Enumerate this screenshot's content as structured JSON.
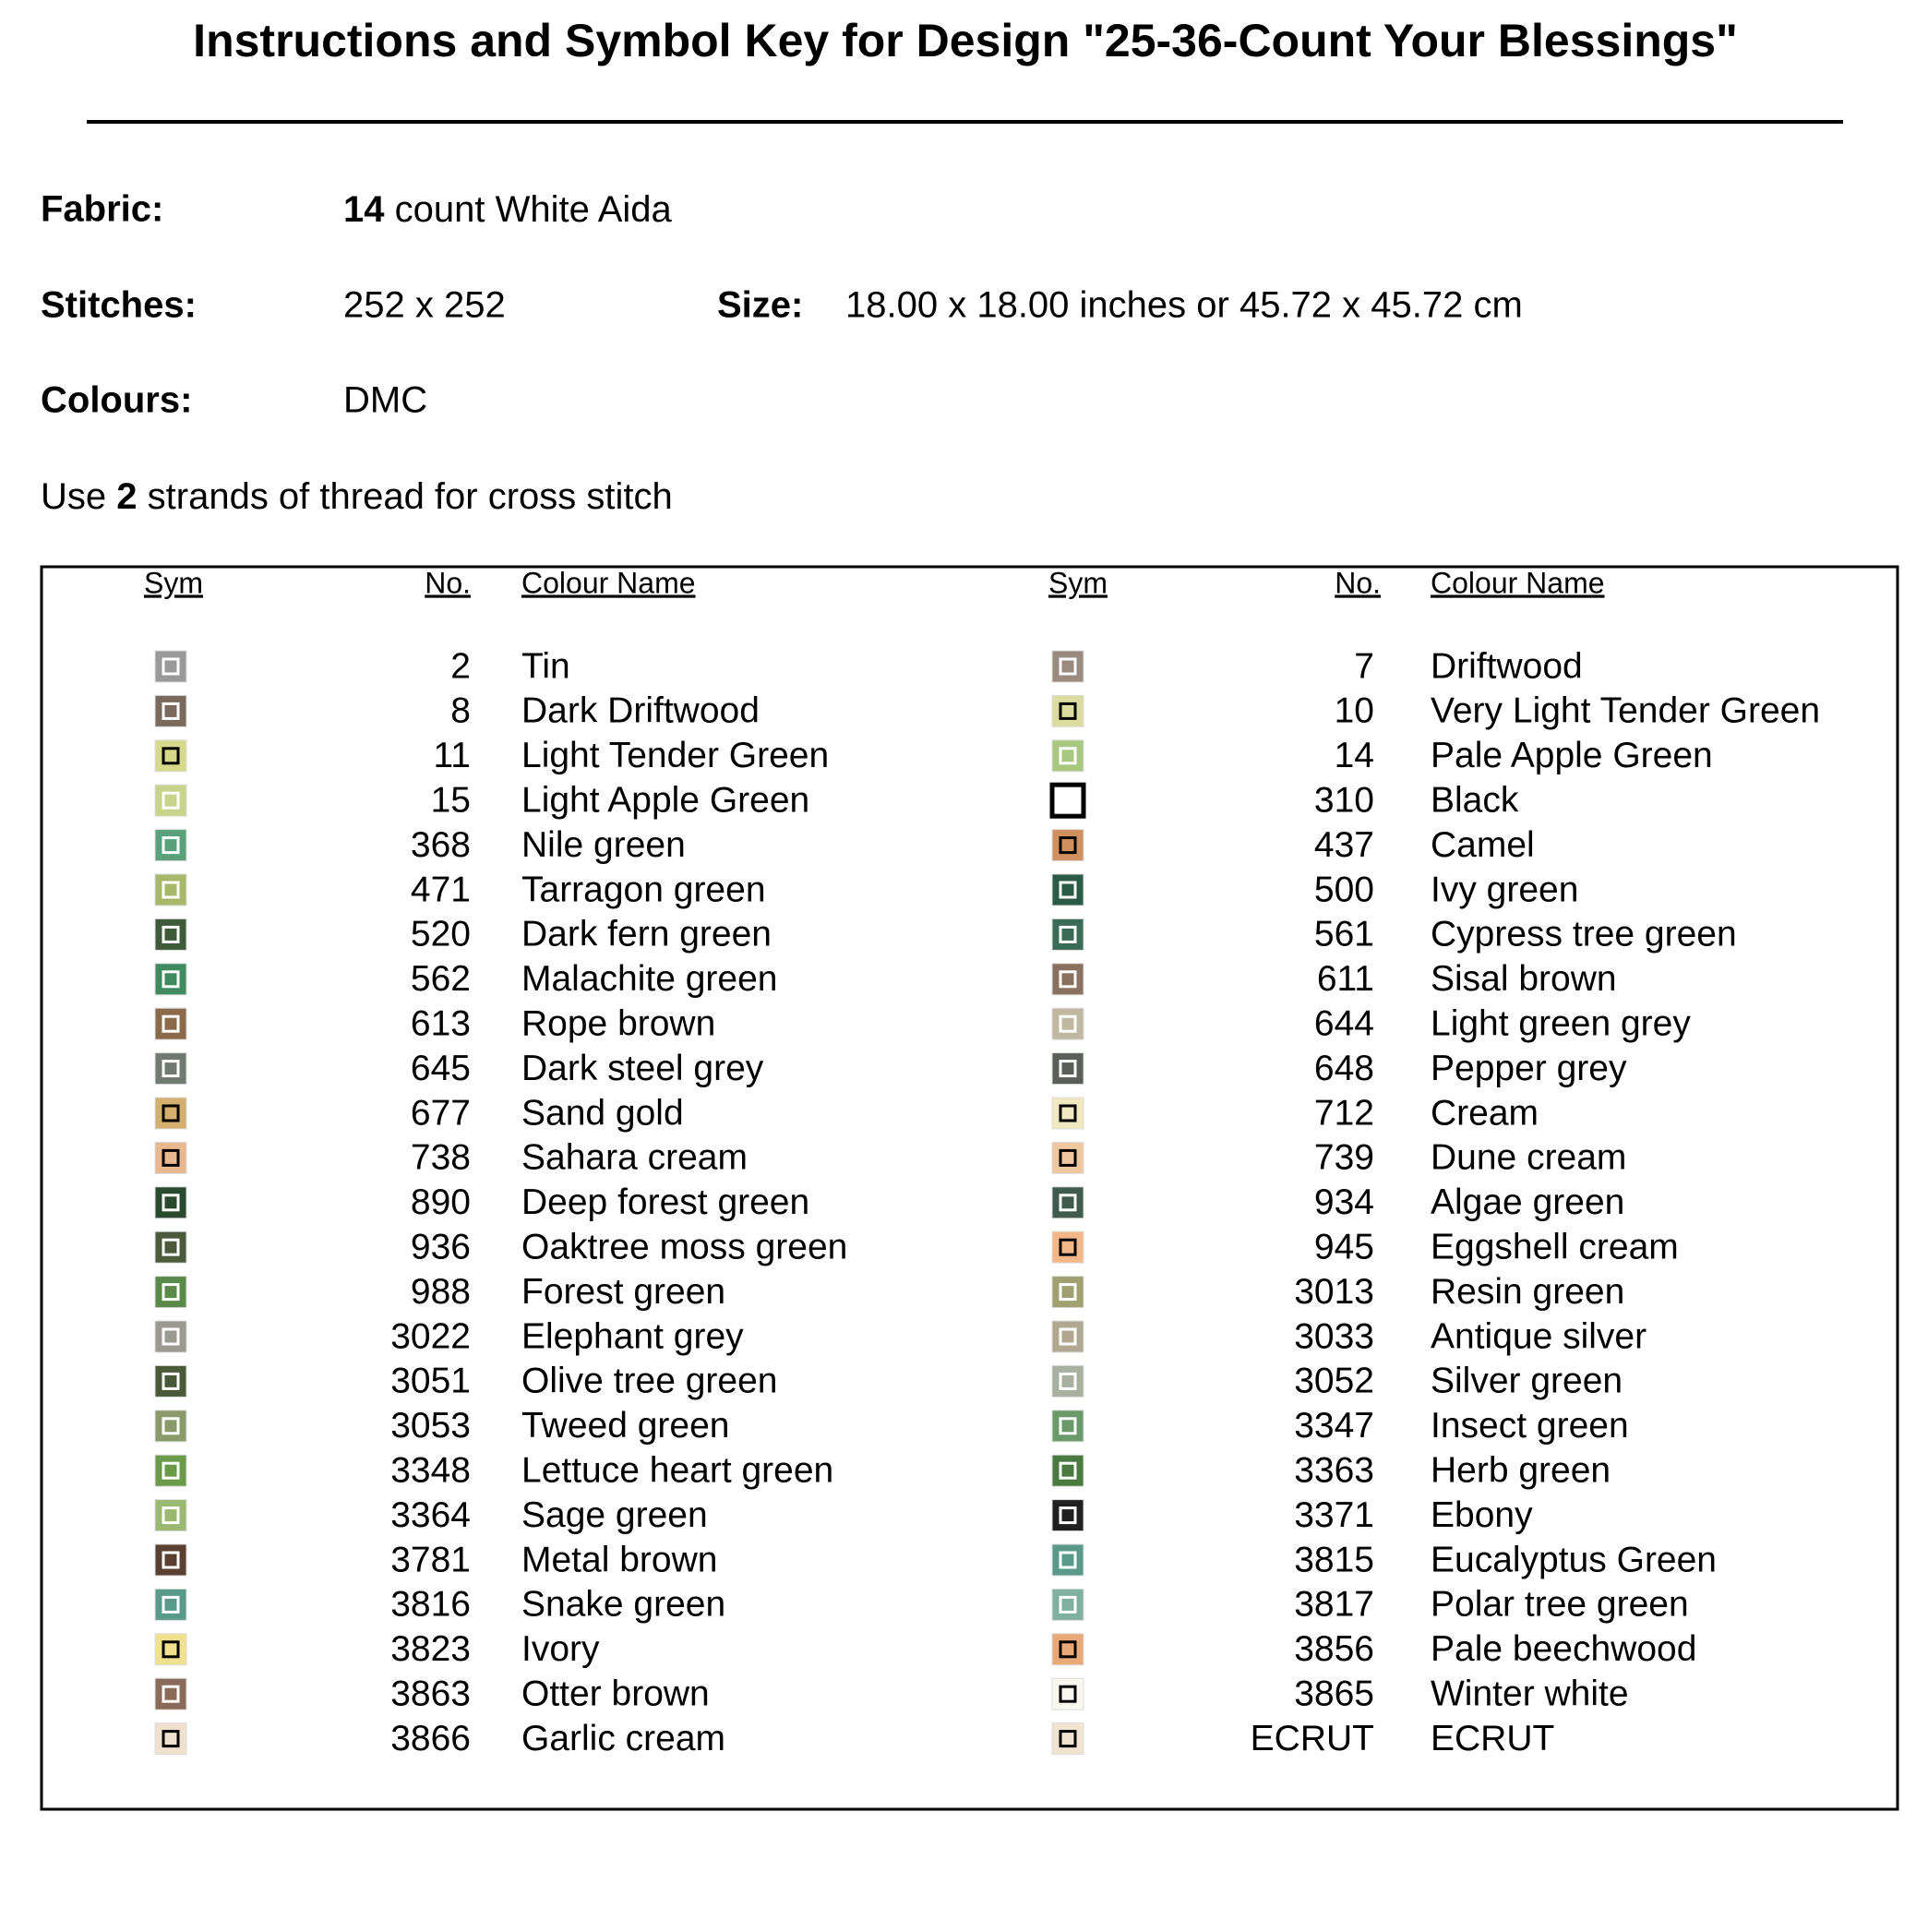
{
  "header": {
    "title": "Instructions and Symbol Key for Design \"25-36-Count Your Blessings\""
  },
  "details": {
    "fabric": {
      "label": "Fabric:",
      "count": "14",
      "text": "count White Aida"
    },
    "stitches": {
      "label": "Stitches:",
      "value": "252 x 252"
    },
    "size": {
      "label": "Size:",
      "value": "18.00 x 18.00 inches or 45.72 x 45.72 cm"
    },
    "colours": {
      "label": "Colours:",
      "value": "DMC"
    },
    "instruction": {
      "before": "Use",
      "strands": "2",
      "after": "strands of thread for cross stitch"
    }
  },
  "table": {
    "headers": {
      "sym": "Sym",
      "no": "No.",
      "name": "Colour Name"
    },
    "left": [
      {
        "no": "2",
        "name": "Tin"
      },
      {
        "no": "8",
        "name": "Dark Driftwood"
      },
      {
        "no": "11",
        "name": "Light Tender Green"
      },
      {
        "no": "15",
        "name": "Light Apple Green"
      },
      {
        "no": "368",
        "name": "Nile green"
      },
      {
        "no": "471",
        "name": "Tarragon green"
      },
      {
        "no": "520",
        "name": "Dark fern green"
      },
      {
        "no": "562",
        "name": "Malachite green"
      },
      {
        "no": "613",
        "name": "Rope brown"
      },
      {
        "no": "645",
        "name": "Dark steel grey"
      },
      {
        "no": "677",
        "name": "Sand gold"
      },
      {
        "no": "738",
        "name": "Sahara cream"
      },
      {
        "no": "890",
        "name": "Deep forest green"
      },
      {
        "no": "936",
        "name": "Oaktree moss green"
      },
      {
        "no": "988",
        "name": "Forest green"
      },
      {
        "no": "3022",
        "name": "Elephant grey"
      },
      {
        "no": "3051",
        "name": "Olive tree green"
      },
      {
        "no": "3053",
        "name": "Tweed green"
      },
      {
        "no": "3348",
        "name": "Lettuce heart green"
      },
      {
        "no": "3364",
        "name": "Sage green"
      },
      {
        "no": "3781",
        "name": "Metal brown"
      },
      {
        "no": "3816",
        "name": "Snake green"
      },
      {
        "no": "3823",
        "name": "Ivory"
      },
      {
        "no": "3863",
        "name": "Otter brown"
      },
      {
        "no": "3866",
        "name": "Garlic cream"
      }
    ],
    "right": [
      {
        "no": "7",
        "name": "Driftwood"
      },
      {
        "no": "10",
        "name": "Very Light Tender Green"
      },
      {
        "no": "14",
        "name": "Pale Apple Green"
      },
      {
        "no": "310",
        "name": "Black"
      },
      {
        "no": "437",
        "name": "Camel"
      },
      {
        "no": "500",
        "name": "Ivy green"
      },
      {
        "no": "561",
        "name": "Cypress tree green"
      },
      {
        "no": "611",
        "name": "Sisal brown"
      },
      {
        "no": "644",
        "name": "Light green grey"
      },
      {
        "no": "648",
        "name": "Pepper grey"
      },
      {
        "no": "712",
        "name": "Cream"
      },
      {
        "no": "739",
        "name": "Dune cream"
      },
      {
        "no": "934",
        "name": "Algae green"
      },
      {
        "no": "945",
        "name": "Eggshell cream"
      },
      {
        "no": "3013",
        "name": "Resin green"
      },
      {
        "no": "3033",
        "name": "Antique silver"
      },
      {
        "no": "3052",
        "name": "Silver green"
      },
      {
        "no": "3347",
        "name": "Insect green"
      },
      {
        "no": "3363",
        "name": "Herb green"
      },
      {
        "no": "3371",
        "name": "Ebony"
      },
      {
        "no": "3815",
        "name": "Eucalyptus Green"
      },
      {
        "no": "3817",
        "name": "Polar tree green"
      },
      {
        "no": "3856",
        "name": "Pale beechwood"
      },
      {
        "no": "3865",
        "name": "Winter white"
      },
      {
        "no": "ECRUT",
        "name": "ECRUT"
      }
    ]
  }
}
